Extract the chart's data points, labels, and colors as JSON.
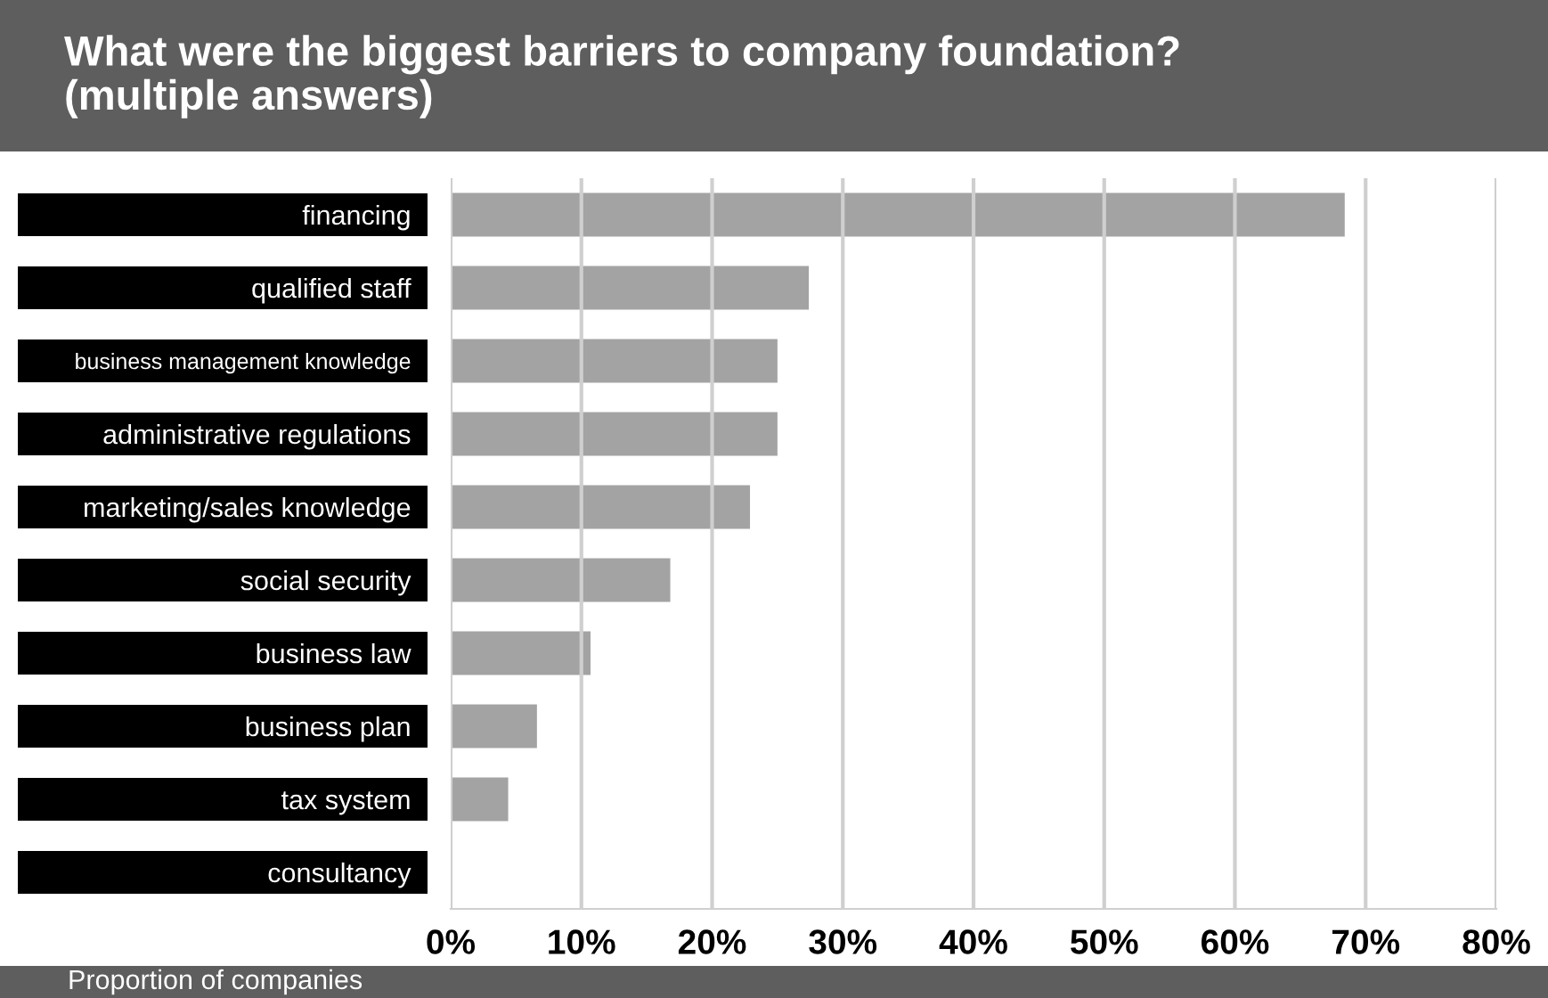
{
  "chart_data": {
    "type": "bar",
    "orientation": "horizontal",
    "title": "What were the biggest barriers to company foundation?\n(multiple answers)",
    "xlabel": "Proportion of companies",
    "categories": [
      "financing",
      "qualified staff",
      "business management knowledge",
      "administrative regulations",
      "marketing/sales knowledge",
      "social security",
      "business law",
      "business plan",
      "tax system",
      "consultancy"
    ],
    "values": [
      68.4,
      27.4,
      25.0,
      25.0,
      22.9,
      16.8,
      10.7,
      6.6,
      4.4,
      0
    ],
    "color": "#a3a3a3",
    "xlim": [
      0,
      80
    ],
    "xticks": [
      {
        "value": 0,
        "label": "0%"
      },
      {
        "value": 10,
        "label": "10%"
      },
      {
        "value": 20,
        "label": "20%"
      },
      {
        "value": 30,
        "label": "30%"
      },
      {
        "value": 40,
        "label": "40%"
      },
      {
        "value": 50,
        "label": "50%"
      },
      {
        "value": 60,
        "label": "60%"
      },
      {
        "value": 70,
        "label": "70%"
      },
      {
        "value": 80,
        "label": "80%"
      }
    ],
    "grid": "x",
    "legend": false
  }
}
